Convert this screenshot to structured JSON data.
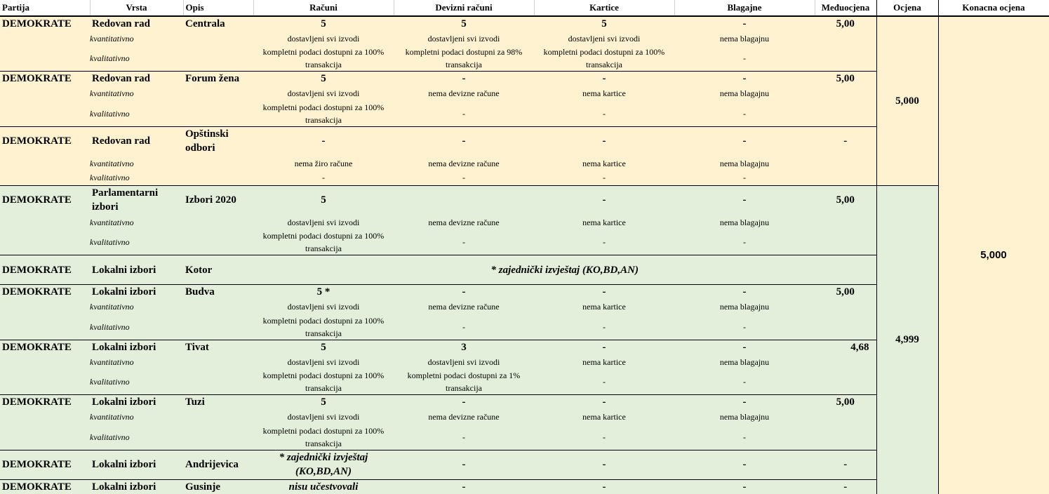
{
  "columns": {
    "partija": "Partija",
    "vrsta": "Vrsta",
    "opis": "Opis",
    "racuni": "Računi",
    "devizni": "Devizni računi",
    "kartice": "Kartice",
    "blagajne": "Blagajne",
    "medjuocjena": "Međuocjena",
    "ocjena": "Ocjena",
    "konacna": "Konacna ocjena"
  },
  "labels": {
    "kvantitativno": "kvantitativno",
    "kvalitativno": "kvalitativno"
  },
  "group_scores": [
    "5,000",
    "4,999"
  ],
  "final_score": "5,000",
  "colors": {
    "yellow": "#fef2d0",
    "green": "#e3efdb",
    "pink": "#fde0d0"
  },
  "rows": [
    {
      "partija": "DEMOKRATE",
      "vrsta": "Redovan rad",
      "opis": "Centrala",
      "racuni": "5",
      "devizni": "5",
      "kartice": "5",
      "blagajne": "-",
      "medjuocjena": "5,00",
      "kvant": [
        "dostavljeni svi izvodi",
        "dostavljeni svi izvodi",
        "dostavljeni svi izvodi",
        "nema blagajnu"
      ],
      "kval": [
        "kompletni podaci dostupni za 100% transakcija",
        "kompletni podaci dostupni za 98% transakcija",
        "kompletni podaci dostupni za 100% transakcija",
        "-"
      ]
    },
    {
      "partija": "DEMOKRATE",
      "vrsta": "Redovan rad",
      "opis": "Forum žena",
      "racuni": "5",
      "devizni": "-",
      "kartice": "-",
      "blagajne": "-",
      "medjuocjena": "5,00",
      "kvant": [
        "dostavljeni svi izvodi",
        "nema devizne račune",
        "nema kartice",
        "nema blagajnu"
      ],
      "kval": [
        "kompletni podaci dostupni za 100% transakcija",
        "-",
        "-",
        "-"
      ]
    },
    {
      "partija": "DEMOKRATE",
      "vrsta": "Redovan rad",
      "opis": "Opštinski odbori",
      "racuni": "-",
      "devizni": "-",
      "kartice": "-",
      "blagajne": "-",
      "medjuocjena": "-",
      "kvant": [
        "nema žiro račune",
        "nema devizne račune",
        "nema kartice",
        "nema blagajnu"
      ],
      "kval": [
        "-",
        "-",
        "-",
        "-"
      ]
    },
    {
      "partija": "DEMOKRATE",
      "vrsta": "Parlamentarni izbori",
      "opis": "Izbori 2020",
      "racuni": "5",
      "devizni": "",
      "kartice": "-",
      "blagajne": "-",
      "medjuocjena": "5,00",
      "kvant": [
        "dostavljeni svi izvodi",
        "nema devizne račune",
        "nema kartice",
        "nema blagajnu"
      ],
      "kval": [
        "kompletni podaci dostupni za 100% transakcija",
        "-",
        "-",
        "-"
      ]
    },
    {
      "partija": "DEMOKRATE",
      "vrsta": "Lokalni izbori",
      "opis": "Kotor",
      "note": "* zajednički izvještaj (KO,BD,AN)"
    },
    {
      "partija": "DEMOKRATE",
      "vrsta": "Lokalni izbori",
      "opis": "Budva",
      "racuni": "5 *",
      "devizni": "-",
      "kartice": "-",
      "blagajne": "-",
      "medjuocjena": "5,00",
      "kvant": [
        "dostavljeni svi izvodi",
        "nema devizne račune",
        "nema kartice",
        "nema blagajnu"
      ],
      "kval": [
        "kompletni podaci dostupni za 100% transakcija",
        "-",
        "-",
        "-"
      ]
    },
    {
      "partija": "DEMOKRATE",
      "vrsta": "Lokalni izbori",
      "opis": "Tivat",
      "racuni": "5",
      "devizni": "3",
      "kartice": "-",
      "blagajne": "-",
      "medjuocjena": "4,68",
      "kvant": [
        "dostavljeni svi izvodi",
        "dostavljeni svi izvodi",
        "nema kartice",
        "nema blagajnu"
      ],
      "kval": [
        "kompletni podaci dostupni za 100% transakcija",
        "kompletni podaci dostupni za 1% transakcija",
        "-",
        "-"
      ]
    },
    {
      "partija": "DEMOKRATE",
      "vrsta": "Lokalni izbori",
      "opis": "Tuzi",
      "racuni": "5",
      "devizni": "-",
      "kartice": "-",
      "blagajne": "-",
      "medjuocjena": "5,00",
      "kvant": [
        "dostavljeni svi izvodi",
        "nema devizne račune",
        "nema kartice",
        "nema blagajnu"
      ],
      "kval": [
        "kompletni podaci dostupni za 100% transakcija",
        "-",
        "-",
        "-"
      ]
    },
    {
      "partija": "DEMOKRATE",
      "vrsta": "Lokalni izbori",
      "opis": "Andrijevica",
      "note": "* zajednički izvještaj (KO,BD,AN)",
      "devizni": "-",
      "kartice": "-",
      "blagajne": "-",
      "medjuocjena": "-"
    },
    {
      "partija": "DEMOKRATE",
      "vrsta": "Lokalni izbori",
      "opis": "Gusinje",
      "note": "nisu učestvovali",
      "devizni": "-",
      "kartice": "-",
      "blagajne": "-",
      "medjuocjena": "-"
    }
  ]
}
